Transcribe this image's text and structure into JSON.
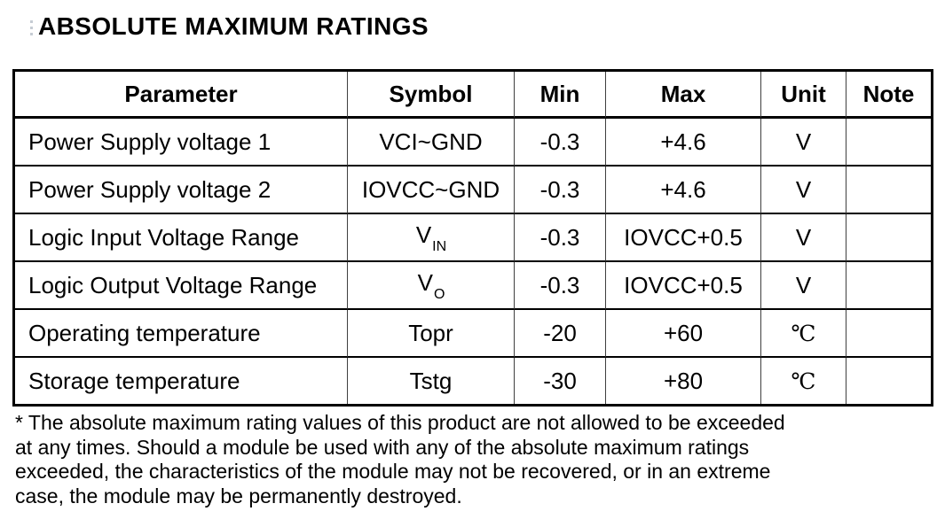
{
  "page": {
    "title": "ABSOLUTE MAXIMUM RATINGS"
  },
  "table": {
    "headers": [
      "Parameter",
      "Symbol",
      "Min",
      "Max",
      "Unit",
      "Note"
    ],
    "rows": [
      {
        "parameter": "Power Supply voltage 1",
        "symbol_base": "VCI~GND",
        "symbol_sub": "",
        "min": "-0.3",
        "max": "+4.6",
        "unit": "V",
        "note": ""
      },
      {
        "parameter": "Power Supply voltage 2",
        "symbol_base": "IOVCC~GND",
        "symbol_sub": "",
        "min": "-0.3",
        "max": "+4.6",
        "unit": "V",
        "note": ""
      },
      {
        "parameter": "Logic Input Voltage Range",
        "symbol_base": "V",
        "symbol_sub": "IN",
        "min": "-0.3",
        "max": "IOVCC+0.5",
        "unit": "V",
        "note": ""
      },
      {
        "parameter": "Logic Output Voltage Range",
        "symbol_base": "V",
        "symbol_sub": "O",
        "min": "-0.3",
        "max": "IOVCC+0.5",
        "unit": "V",
        "note": ""
      },
      {
        "parameter": "Operating temperature",
        "symbol_base": "Topr",
        "symbol_sub": "",
        "min": "-20",
        "max": "+60",
        "unit": "℃",
        "note": ""
      },
      {
        "parameter": "Storage temperature",
        "symbol_base": "Tstg",
        "symbol_sub": "",
        "min": "-30",
        "max": "+80",
        "unit": "℃",
        "note": ""
      }
    ]
  },
  "footnote": {
    "lines": [
      "* The absolute maximum rating values of this product are not allowed to be exceeded",
      "at any times. Should a module be used with any of the absolute maximum ratings",
      "exceeded, the characteristics of the module may not be recovered, or in an extreme",
      "case, the module may be permanently destroyed."
    ]
  },
  "colors": {
    "text": "#000000",
    "border_outer": "#000000",
    "border_inner_vertical": "#3f3f3f",
    "background": "#ffffff"
  }
}
